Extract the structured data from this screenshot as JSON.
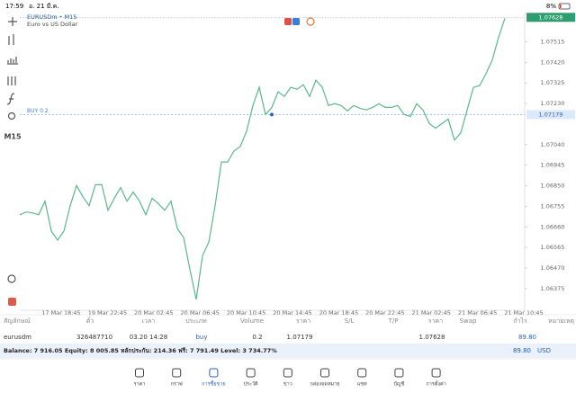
{
  "status_bar": {
    "time": "17:59",
    "date": "อ. 21 มี.ค.",
    "battery": "8%"
  },
  "toolbar": {
    "timeframe": "M15"
  },
  "chart_data": {
    "type": "line",
    "title": "EURUSDm • M15",
    "subtitle": "Euro vs US Dollar",
    "color": "#5cb88b",
    "values": [
      1.06716,
      1.06729,
      1.06725,
      1.06716,
      1.06779,
      1.06641,
      1.06599,
      1.06641,
      1.06758,
      1.06851,
      1.068,
      1.06758,
      1.06855,
      1.06855,
      1.06737,
      1.06792,
      1.06842,
      1.06779,
      1.06821,
      1.06779,
      1.06716,
      1.06792,
      1.06767,
      1.06737,
      1.06779,
      1.06653,
      1.06611,
      1.06464,
      1.06325,
      1.06527,
      1.0659,
      1.06758,
      1.0696,
      1.0696,
      1.07011,
      1.07032,
      1.07103,
      1.07221,
      1.07305,
      1.07179,
      1.07212,
      1.07284,
      1.07263,
      1.07305,
      1.07296,
      1.07317,
      1.07263,
      1.07338,
      1.07305,
      1.07221,
      1.07229,
      1.07221,
      1.07196,
      1.07221,
      1.07208,
      1.072,
      1.07212,
      1.07229,
      1.07212,
      1.07212,
      1.07221,
      1.07179,
      1.0717,
      1.07229,
      1.072,
      1.07137,
      1.07116,
      1.07137,
      1.07158,
      1.07061,
      1.07095,
      1.072,
      1.07305,
      1.07313,
      1.07368,
      1.07431,
      1.07536,
      1.07624
    ],
    "ylim": [
      1.06275,
      1.0765
    ],
    "yticks": [
      1.07515,
      {
        "value": 1.0742,
        "label": "1.07420"
      },
      1.07325,
      {
        "value": 1.0723,
        "label": "1.07230"
      },
      {
        "value": 1.0704,
        "label": "1.07040"
      },
      1.06945,
      {
        "value": 1.0685,
        "label": "1.06850"
      },
      1.06755,
      {
        "value": 1.0666,
        "label": "1.06660"
      },
      1.06565,
      {
        "value": 1.0647,
        "label": "1.06470"
      },
      1.06375
    ],
    "x_labels": [
      "17 Mar 18:45",
      "19 Mar 22:45",
      "20 Mar 02:45",
      "20 Mar 06:45",
      "20 Mar 10:45",
      "20 Mar 14:45",
      "20 Mar 18:45",
      "20 Mar 22:45",
      "21 Mar 02:45",
      "21 Mar 06:45",
      "21 Mar 10:45"
    ],
    "current_price": 1.07628,
    "position_line": {
      "label": "BUY 0.2",
      "value": 1.07179,
      "entry_index": 40
    }
  },
  "positions_table": {
    "headers": [
      "สัญลักษณ์",
      "ตั๋ว",
      "เวลา",
      "ประเภท",
      "Volume",
      "ราคา",
      "S/L",
      "T/P",
      "ราคา",
      "Swap",
      "กำไร",
      "หมายเหตุ"
    ],
    "row": {
      "symbol": "eurusdm",
      "ticket": "326487710",
      "time": "03.20 14:28",
      "type": "buy",
      "volume": 0.2,
      "open_price": 1.07179,
      "current_price": 1.07628,
      "profit": "89.80"
    }
  },
  "summary": {
    "text": "Balance: 7 916.05 Equity: 8 005.85 หลักประกัน: 214.36 ฟรี: 7 791.49 Level: 3 734.77%",
    "total": "89.80",
    "currency": "USD"
  },
  "nav": [
    "ราคา",
    "กราฟ",
    "การซื้อขาย",
    "ประวัติ",
    "ข่าว",
    "กล่องจดหมาย",
    "แชท",
    "บัญชี",
    "การตั้งค่า"
  ]
}
